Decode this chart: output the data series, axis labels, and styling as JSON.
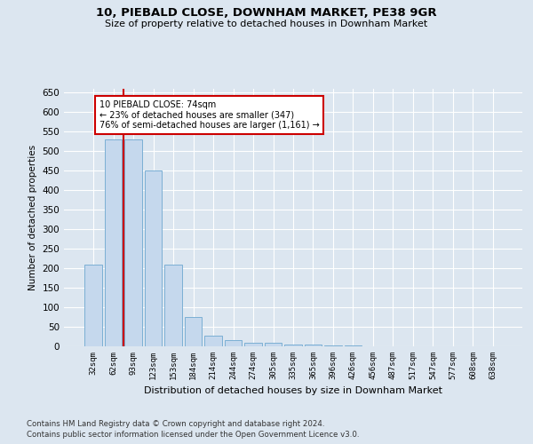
{
  "title1": "10, PIEBALD CLOSE, DOWNHAM MARKET, PE38 9GR",
  "title2": "Size of property relative to detached houses in Downham Market",
  "xlabel": "Distribution of detached houses by size in Downham Market",
  "ylabel": "Number of detached properties",
  "categories": [
    "32sqm",
    "62sqm",
    "93sqm",
    "123sqm",
    "153sqm",
    "184sqm",
    "214sqm",
    "244sqm",
    "274sqm",
    "305sqm",
    "335sqm",
    "365sqm",
    "396sqm",
    "426sqm",
    "456sqm",
    "487sqm",
    "517sqm",
    "547sqm",
    "577sqm",
    "608sqm",
    "638sqm"
  ],
  "values": [
    210,
    530,
    530,
    450,
    210,
    75,
    28,
    15,
    10,
    8,
    5,
    4,
    3,
    2,
    1,
    1,
    1,
    1,
    0,
    1,
    1
  ],
  "bar_color": "#c5d8ed",
  "bar_edge_color": "#7bafd4",
  "vline_x": 1.5,
  "vline_color": "#cc0000",
  "annotation_text": "10 PIEBALD CLOSE: 74sqm\n← 23% of detached houses are smaller (347)\n76% of semi-detached houses are larger (1,161) →",
  "annotation_box_color": "#ffffff",
  "annotation_box_edge": "#cc0000",
  "ylim": [
    0,
    660
  ],
  "yticks": [
    0,
    50,
    100,
    150,
    200,
    250,
    300,
    350,
    400,
    450,
    500,
    550,
    600,
    650
  ],
  "footer1": "Contains HM Land Registry data © Crown copyright and database right 2024.",
  "footer2": "Contains public sector information licensed under the Open Government Licence v3.0.",
  "background_color": "#dce6f0",
  "plot_bg_color": "#dce6f0"
}
